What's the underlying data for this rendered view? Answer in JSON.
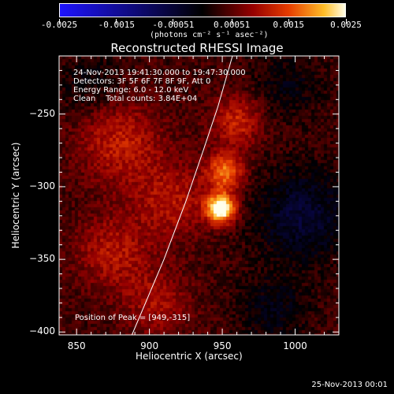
{
  "colorbar": {
    "ticks": [
      "-0.0025",
      "-0.0015",
      "-0.00051",
      "0.00051",
      "0.0015",
      "0.0025"
    ],
    "unit_label": "(photons cm⁻² s⁻¹ asec⁻²)",
    "range": [
      -0.0025,
      0.0025
    ]
  },
  "title": "Reconstructed RHESSI Image",
  "annotations": {
    "time_range": "24-Nov-2013 19:41:30.000 to 19:47:30.000",
    "detectors": "Detectors: 3F 5F 6F 7F 8F 9F, Att 0",
    "energy": "Energy Range: 6.0 - 12.0 keV",
    "clean": "Clean    Total counts: 3.84E+04",
    "peak": "Position of Peak = [949,-315]"
  },
  "footer_date": "25-Nov-2013 00:01",
  "colors": {
    "background": "#000000",
    "foreground": "#ffffff"
  },
  "chart_data": {
    "type": "heatmap",
    "title": "Reconstructed RHESSI Image",
    "xlabel": "Heliocentric X (arcsec)",
    "ylabel": "Heliocentric Y (arcsec)",
    "xlim": [
      838,
      1030
    ],
    "ylim": [
      -402,
      -210
    ],
    "x_ticks": [
      850,
      900,
      950,
      1000
    ],
    "y_ticks": [
      -250,
      -300,
      -350,
      -400
    ],
    "colormap": "rhessi diverging (blue-black-red-yellow-white)",
    "peak_position": [
      949,
      -315
    ],
    "limb_curve": [
      [
        888,
        -402
      ],
      [
        910,
        -350
      ],
      [
        925,
        -310
      ],
      [
        937,
        -275
      ],
      [
        947,
        -245
      ],
      [
        957,
        -210
      ]
    ],
    "sources": [
      {
        "x": 949,
        "y": -315,
        "amplitude": 0.0025,
        "width_arcsec": 7
      },
      {
        "x": 952,
        "y": -290,
        "amplitude": 0.0014,
        "width_arcsec": 9
      },
      {
        "x": 960,
        "y": -255,
        "amplitude": 0.0009,
        "width_arcsec": 12
      },
      {
        "x": 880,
        "y": -270,
        "amplitude": 0.0008,
        "width_arcsec": 20
      },
      {
        "x": 875,
        "y": -345,
        "amplitude": 0.0007,
        "width_arcsec": 18
      },
      {
        "x": 915,
        "y": -310,
        "amplitude": 0.0007,
        "width_arcsec": 18
      },
      {
        "x": 905,
        "y": -380,
        "amplitude": 0.0006,
        "width_arcsec": 16
      }
    ],
    "negative_regions": [
      {
        "x": 1005,
        "y": -320,
        "amplitude": -0.0008,
        "width_arcsec": 22
      },
      {
        "x": 995,
        "y": -230,
        "amplitude": -0.0004,
        "width_arcsec": 16
      },
      {
        "x": 860,
        "y": -230,
        "amplitude": -0.0004,
        "width_arcsec": 14
      },
      {
        "x": 985,
        "y": -385,
        "amplitude": -0.0005,
        "width_arcsec": 16
      }
    ]
  }
}
